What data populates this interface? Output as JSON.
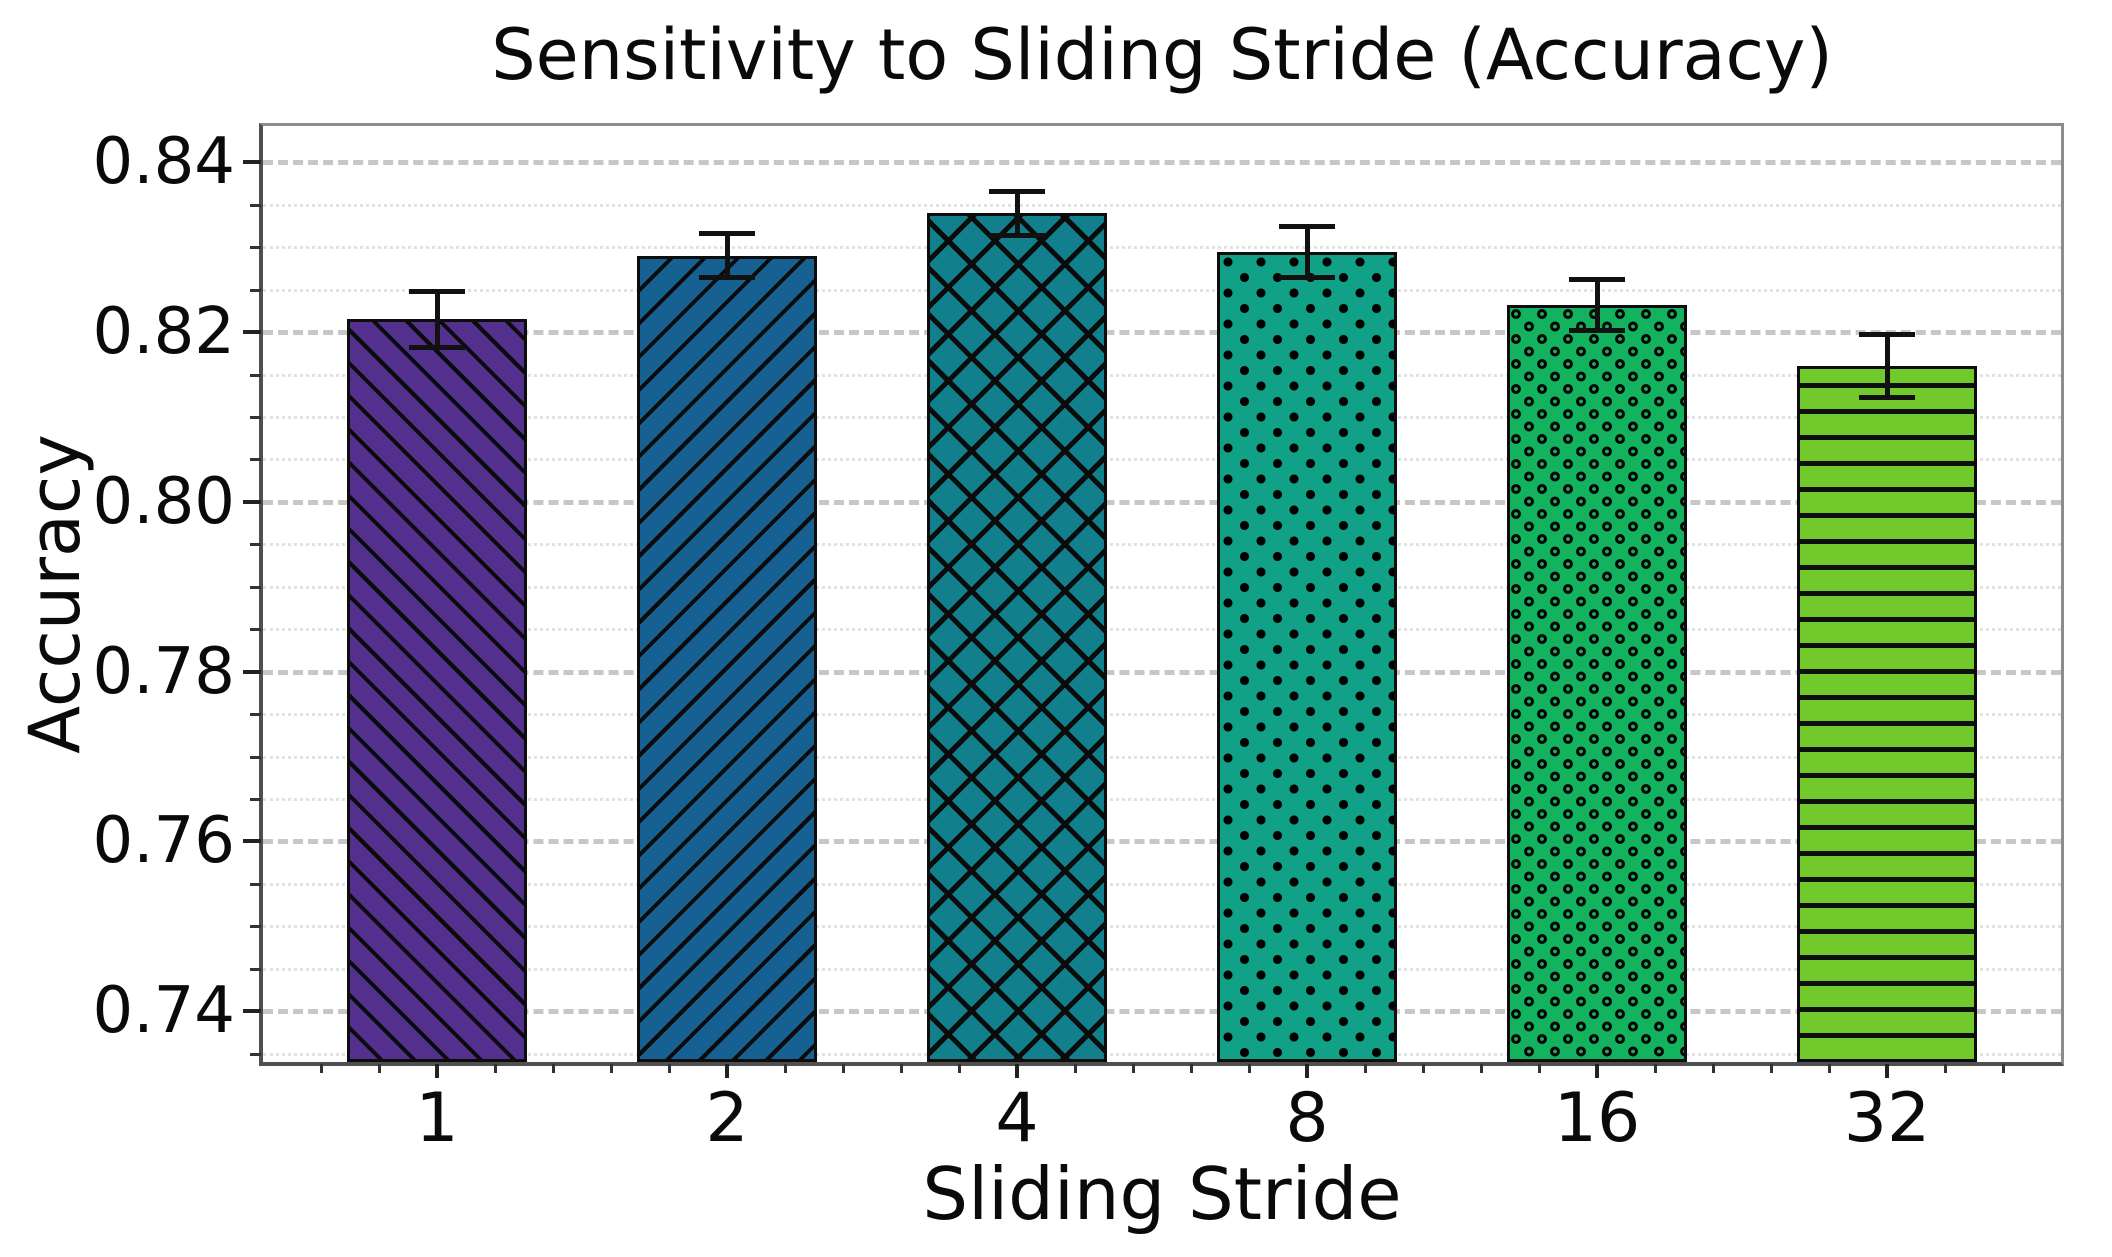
{
  "chart_data": {
    "type": "bar",
    "title": "Sensitivity to Sliding Stride (Accuracy)",
    "xlabel": "Sliding Stride",
    "ylabel": "Accuracy",
    "categories": [
      "1",
      "2",
      "4",
      "8",
      "16",
      "32"
    ],
    "values": [
      0.8215,
      0.829,
      0.834,
      0.8295,
      0.8232,
      0.816
    ],
    "errors": [
      0.0033,
      0.0026,
      0.0026,
      0.003,
      0.003,
      0.0037
    ],
    "bar_colors": [
      "#54308e",
      "#176192",
      "#11808c",
      "#10a187",
      "#13b25f",
      "#72c92b"
    ],
    "hatches": [
      "/",
      "\\",
      "x",
      ".",
      "o",
      "-"
    ],
    "ylim": [
      0.734,
      0.8443
    ],
    "yticks_major": [
      0.74,
      0.76,
      0.78,
      0.8,
      0.82,
      0.84
    ],
    "ytick_labels": [
      "0.74",
      "0.76",
      "0.78",
      "0.80",
      "0.82",
      "0.84"
    ],
    "ytick_minor_step": 0.005,
    "grid": "horizontal: major dashed, minor dotted",
    "legend_position": "none",
    "colors": {
      "background": "#ffffff",
      "grid_major": "#c7c7c7",
      "grid_minor": "#e2e2e2",
      "frame": "#6e6e6e",
      "bar_edge": "#0d0d0d",
      "error_bar": "#111111",
      "text": "#0a0a0a"
    }
  }
}
